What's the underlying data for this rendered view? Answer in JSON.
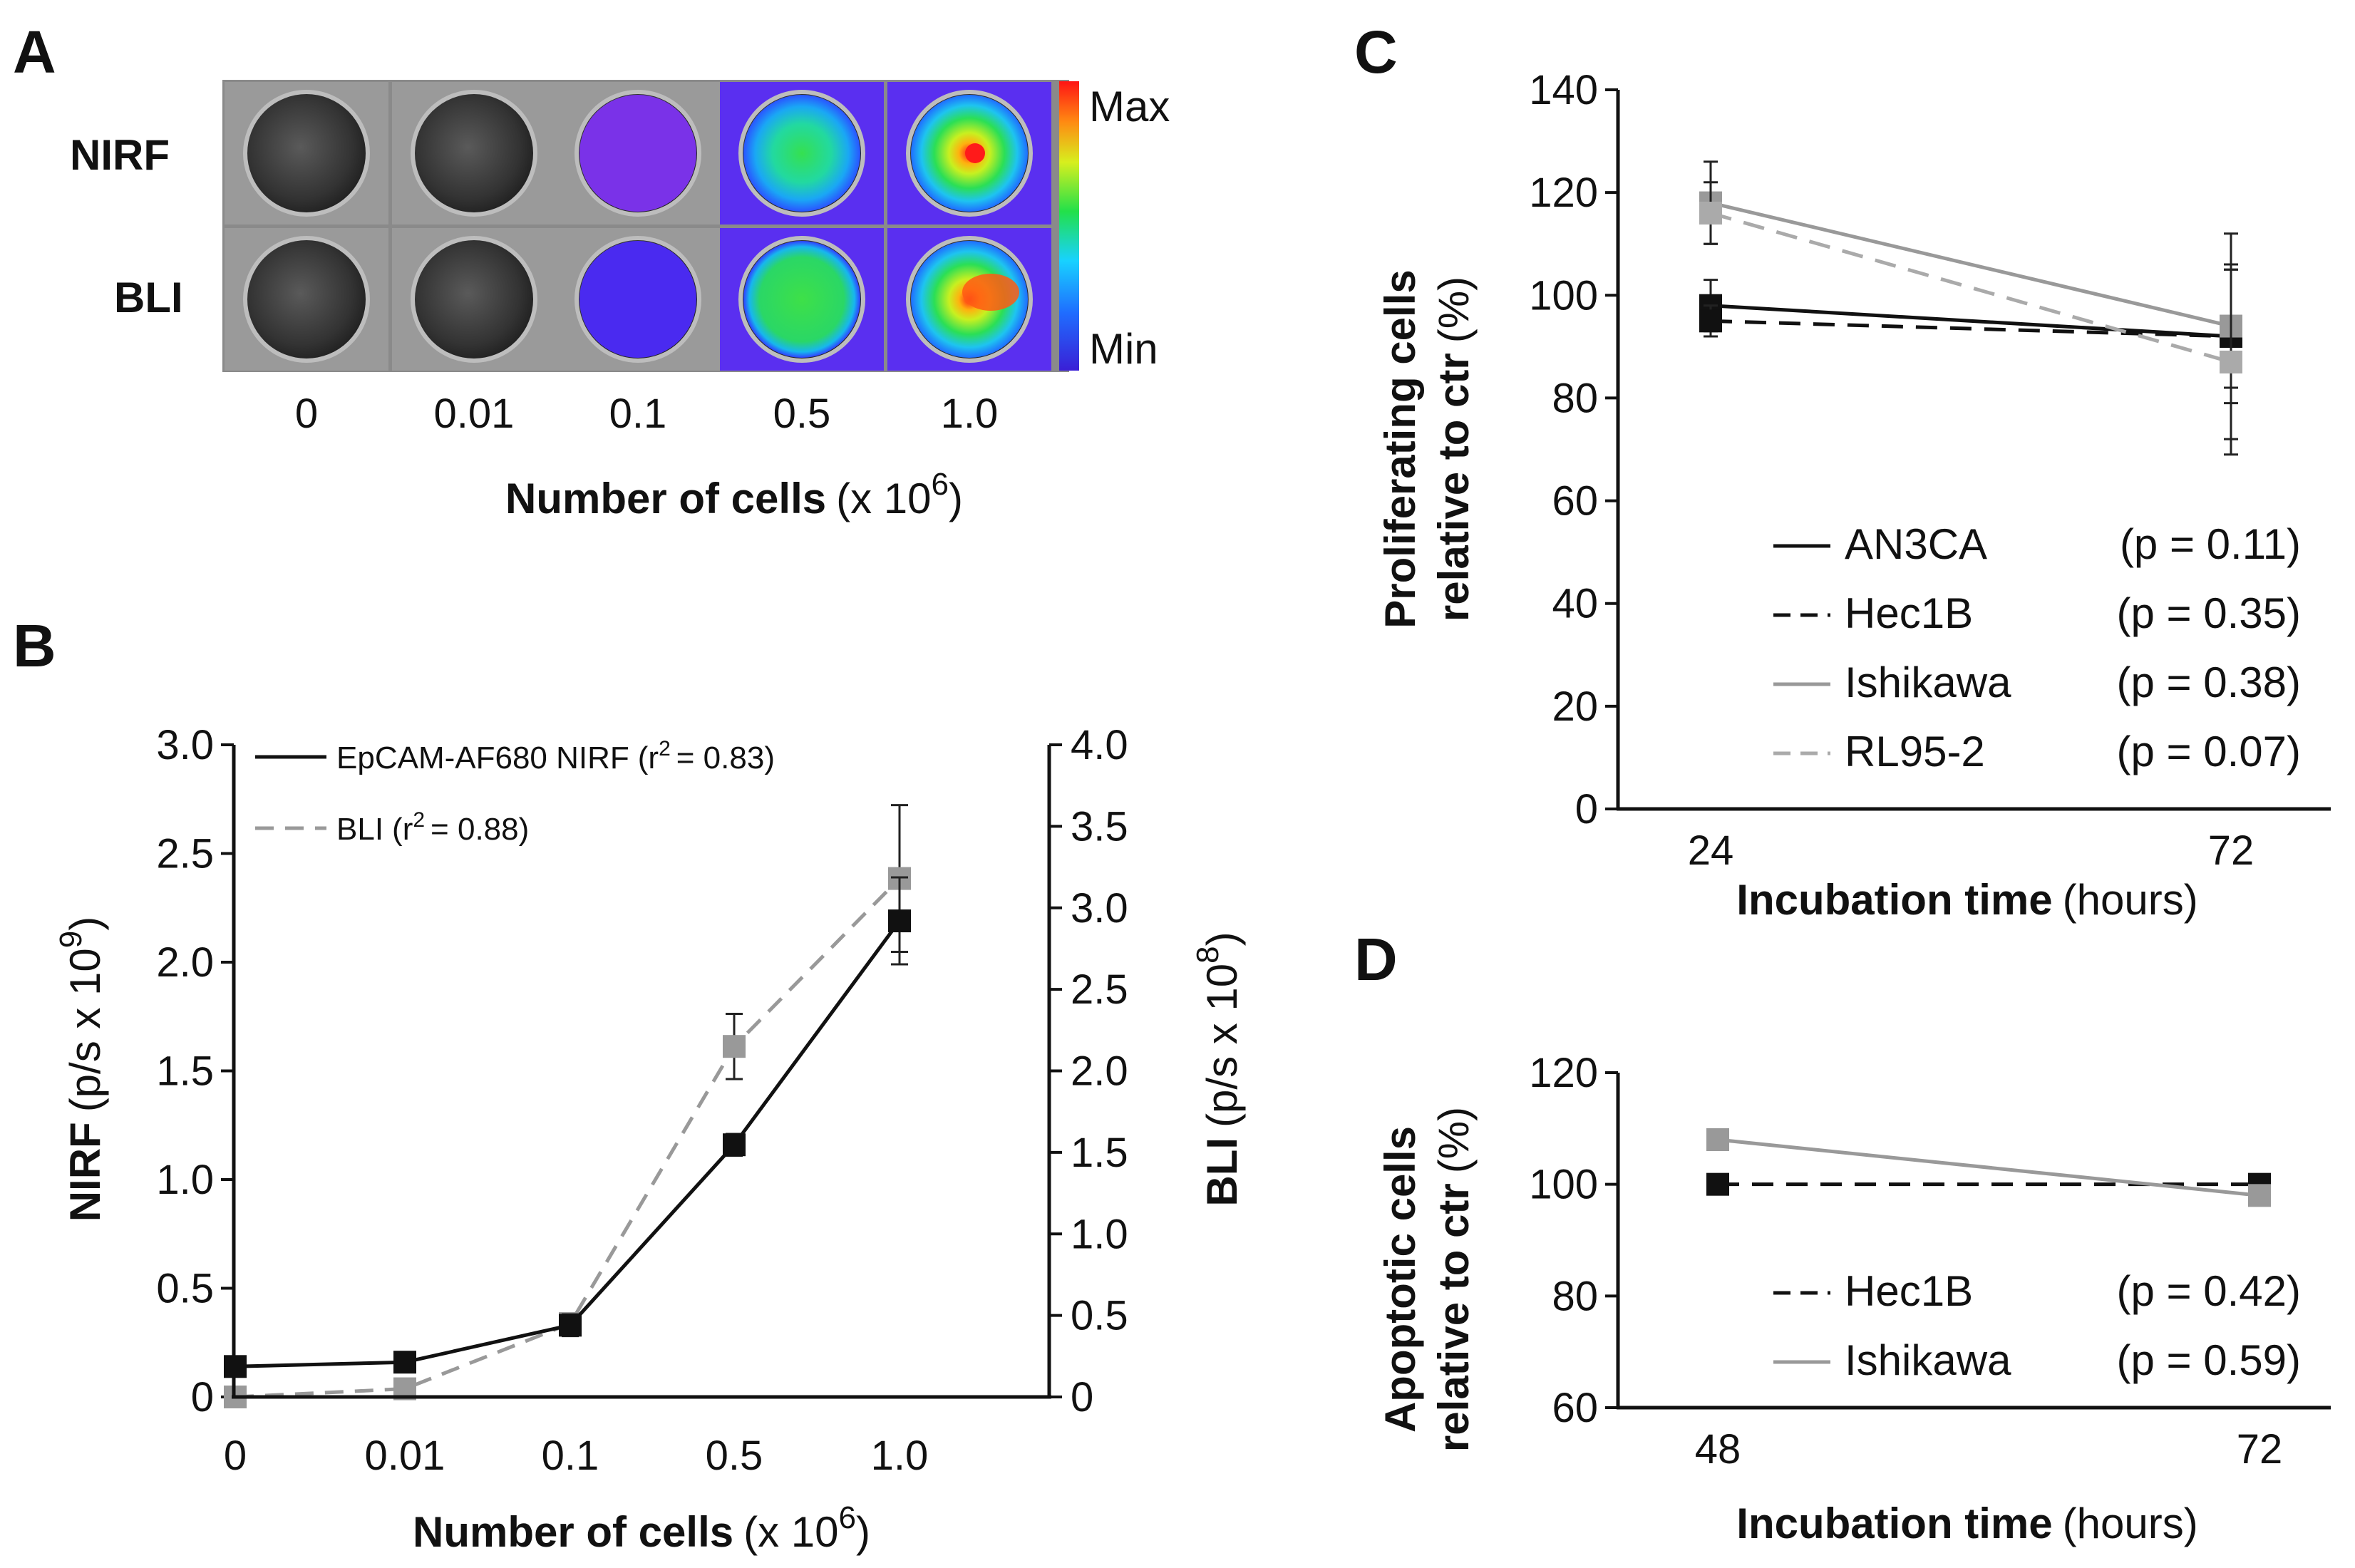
{
  "panels": {
    "A": "A",
    "B": "B",
    "C": "C",
    "D": "D"
  },
  "panel_a": {
    "row_labels": [
      "NIRF",
      "BLI"
    ],
    "column_labels": [
      "0",
      "0.01",
      "0.1",
      "0.5",
      "1.0"
    ],
    "scale_max": "Max",
    "scale_min": "Min",
    "xlabel_bold": "Number of cells",
    "xlabel_unit": "(x 10",
    "xlabel_exp": "6",
    "xlabel_close": ")",
    "nirf_signal": [
      0,
      0,
      0.1,
      0.55,
      0.95
    ],
    "bli_signal": [
      0,
      0,
      0.1,
      0.55,
      0.9
    ]
  },
  "chart_data": [
    {
      "panel": "B",
      "type": "line",
      "categories": [
        "0",
        "0.01",
        "0.1",
        "0.5",
        "1.0"
      ],
      "xlabel": "Number of cells (x 10^6)",
      "ylabel_left": "NIRF (p/s x 10^9)",
      "ylabel_right": "BLI (p/s x 10^8)",
      "ylim_left": [
        0,
        3.0
      ],
      "ylim_right": [
        0,
        4.0
      ],
      "yticks_left": [
        "0",
        "0.5",
        "1.0",
        "1.5",
        "2.0",
        "2.5",
        "3.0"
      ],
      "yticks_right": [
        "0",
        "0.5",
        "1.0",
        "1.5",
        "2.0",
        "2.5",
        "3.0",
        "3.5",
        "4.0"
      ],
      "legend": "top-left",
      "series": [
        {
          "name": "EpCAM-AF680 NIRF",
          "legend_stat": "r2 = 0.83",
          "axis": "left",
          "color": "#111111",
          "dash": false,
          "values": [
            0.14,
            0.16,
            0.33,
            1.16,
            2.19
          ],
          "errors": [
            0.02,
            0.02,
            0.05,
            0.05,
            0.2
          ]
        },
        {
          "name": "BLI",
          "legend_stat": "r2 = 0.88",
          "axis": "right",
          "color": "#999999",
          "dash": true,
          "values": [
            0.0,
            0.05,
            0.45,
            2.15,
            3.18
          ],
          "errors": [
            0.01,
            0.02,
            0.06,
            0.2,
            0.45
          ]
        }
      ]
    },
    {
      "panel": "C",
      "type": "line",
      "categories": [
        "24",
        "72"
      ],
      "xlabel": "Incubation time (hours)",
      "ylabel": "Proliferating cells relative to ctr (%)",
      "ylim": [
        0,
        140
      ],
      "yticks": [
        "0",
        "20",
        "40",
        "60",
        "80",
        "100",
        "120",
        "140"
      ],
      "legend": "bottom-right",
      "series": [
        {
          "name": "AN3CA",
          "p": "(p = 0.11)",
          "color": "#111111",
          "dash": false,
          "values": [
            98,
            92
          ],
          "errors": [
            5,
            13
          ]
        },
        {
          "name": "Hec1B",
          "p": "(p = 0.35)",
          "color": "#111111",
          "dash": true,
          "values": [
            95,
            92
          ],
          "errors": [
            3,
            20
          ]
        },
        {
          "name": "Ishikawa",
          "p": "(p = 0.38)",
          "color": "#999999",
          "dash": false,
          "values": [
            118,
            94
          ],
          "errors": [
            8,
            12
          ]
        },
        {
          "name": "RL95-2",
          "p": "(p = 0.07)",
          "color": "#aaaaaa",
          "dash": true,
          "values": [
            116,
            87
          ],
          "errors": [
            6,
            18
          ]
        }
      ]
    },
    {
      "panel": "D",
      "type": "line",
      "categories": [
        "48",
        "72"
      ],
      "xlabel": "Incubation time (hours)",
      "ylabel": "Apoptotic cells relative to ctr (%)",
      "ylim": [
        60,
        120
      ],
      "yticks": [
        "60",
        "80",
        "100",
        "120"
      ],
      "legend": "bottom-right",
      "series": [
        {
          "name": "Hec1B",
          "p": "(p = 0.42)",
          "color": "#111111",
          "dash": true,
          "values": [
            100,
            100
          ]
        },
        {
          "name": "Ishikawa",
          "p": "(p = 0.59)",
          "color": "#999999",
          "dash": false,
          "values": [
            108,
            98
          ]
        }
      ]
    }
  ],
  "texts": {
    "b_ylabel_left_bold": "NIRF",
    "b_ylabel_left_unit": "(p/s x 10",
    "b_ylabel_left_exp": "9",
    "b_ylabel_right_bold": "BLI",
    "b_ylabel_right_unit": "(p/s x 10",
    "b_ylabel_right_exp": "8",
    "b_leg1_name": "EpCAM-AF680 NIRF",
    "b_leg2_name": "BLI",
    "b_leg_open": "(r",
    "b_leg_sup": "2",
    "b_leg1_val": "= 0.83)",
    "b_leg2_val": "= 0.88)",
    "c_ylabel_bold1": "Proliferating cells",
    "c_ylabel_bold2": "relative to ctr",
    "c_ylabel_unit": "(%)",
    "d_ylabel_bold1": "Apoptotic cells",
    "d_ylabel_bold2": "relative to ctr",
    "d_ylabel_unit": "(%)",
    "x_time_bold": "Incubation time",
    "x_time_unit": "(hours)"
  }
}
